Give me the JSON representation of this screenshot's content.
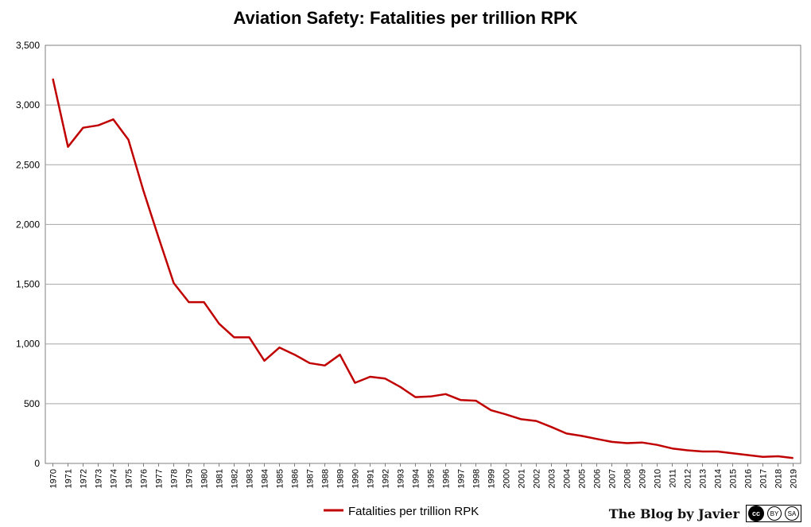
{
  "chart_data": {
    "type": "line",
    "title": "Aviation Safety: Fatalities per trillion RPK",
    "xlabel": "",
    "ylabel": "",
    "ylim": [
      0,
      3500
    ],
    "yticks": [
      0,
      500,
      1000,
      1500,
      2000,
      2500,
      3000,
      3500
    ],
    "ytick_labels": [
      "0",
      "500",
      "1,000",
      "1,500",
      "2,000",
      "2,500",
      "3,000",
      "3,500"
    ],
    "grid": true,
    "legend_position": "bottom",
    "line_color": "#c00000",
    "x": [
      "1970",
      "1971",
      "1972",
      "1973",
      "1974",
      "1975",
      "1976",
      "1977",
      "1978",
      "1979",
      "1980",
      "1981",
      "1982",
      "1983",
      "1984",
      "1985",
      "1986",
      "1987",
      "1988",
      "1989",
      "1990",
      "1991",
      "1992",
      "1993",
      "1994",
      "1995",
      "1996",
      "1997",
      "1998",
      "1999",
      "2000",
      "2001",
      "2002",
      "2003",
      "2004",
      "2005",
      "2006",
      "2007",
      "2008",
      "2009",
      "2010",
      "2011",
      "2012",
      "2013",
      "2014",
      "2015",
      "2016",
      "2017",
      "2018",
      "2019"
    ],
    "series": [
      {
        "name": "Fatalities per trillion RPK",
        "values": [
          3220,
          2650,
          2810,
          2830,
          2880,
          2710,
          2280,
          1890,
          1510,
          1350,
          1350,
          1170,
          1055,
          1055,
          860,
          970,
          910,
          840,
          820,
          910,
          675,
          725,
          710,
          640,
          555,
          560,
          580,
          530,
          525,
          445,
          410,
          370,
          355,
          305,
          250,
          230,
          205,
          180,
          170,
          175,
          155,
          125,
          110,
          100,
          100,
          85,
          70,
          55,
          60,
          45
        ]
      }
    ]
  },
  "credit": {
    "text": "The Blog by Javier",
    "cc_label": "cc",
    "by_label": "BY",
    "sa_label": "SA"
  }
}
